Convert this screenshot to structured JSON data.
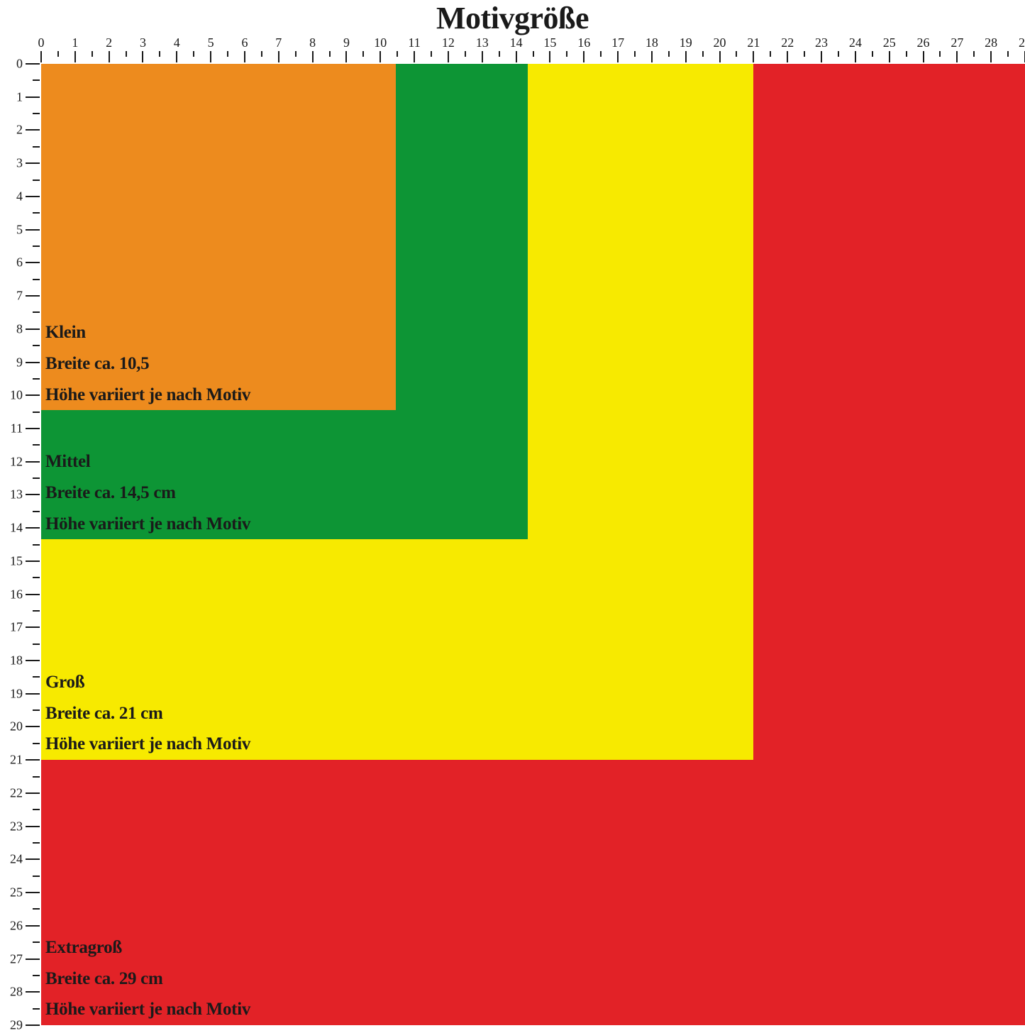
{
  "title": "Motivgröße",
  "ruler_max": 29,
  "title_fontsize": 44,
  "ruler_fontsize": 18,
  "label_fontsize": 25,
  "text_color": "#1a1a1a",
  "background_color": "#ffffff",
  "boxes": [
    {
      "name": "Extragroß",
      "width_cm": 29,
      "color": "#e22227",
      "lines": [
        "Extragroß",
        "Breite ca. 29 cm",
        "Höhe variiert je nach Motiv"
      ]
    },
    {
      "name": "Groß",
      "width_cm": 21,
      "color": "#f7ea00",
      "lines": [
        "Groß",
        "Breite ca. 21 cm",
        "Höhe variiert je nach Motiv"
      ]
    },
    {
      "name": "Mittel",
      "width_cm": 14.35,
      "color": "#0d9535",
      "lines": [
        "Mittel",
        "Breite ca. 14,5 cm",
        "Höhe variiert je nach Motiv"
      ]
    },
    {
      "name": "Klein",
      "width_cm": 10.45,
      "color": "#ed8b1e",
      "lines": [
        "Klein",
        "Breite ca. 10,5",
        "Höhe variiert je nach Motiv"
      ]
    }
  ]
}
